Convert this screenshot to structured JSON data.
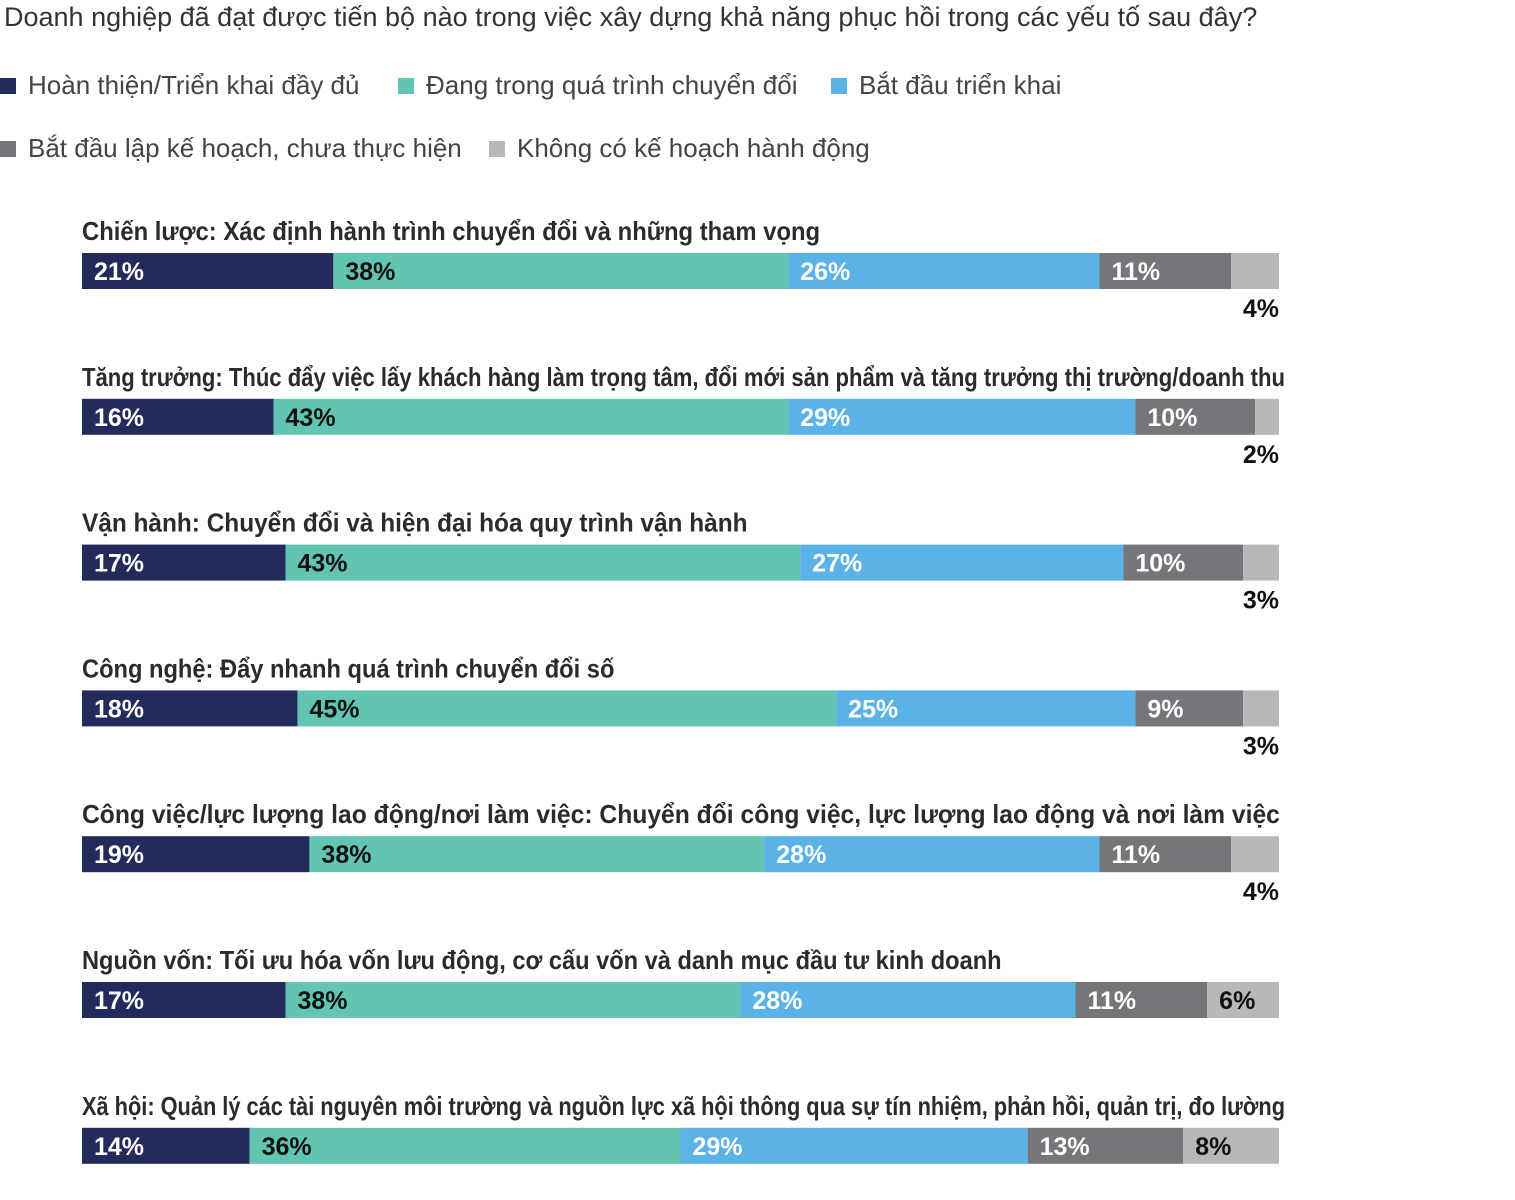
{
  "chart_data": {
    "type": "bar",
    "orientation": "horizontal",
    "stacked": true,
    "title": "Doanh nghiệp đã đạt được tiến bộ nào trong việc xây dựng khả năng phục hồi trong các yếu tố sau đây?",
    "legend_position": "top-left",
    "unit": "%",
    "categories": [
      "Chiến lược: Xác định hành trình chuyển đổi và những tham vọng",
      "Tăng trưởng: Thúc đẩy việc lấy khách hàng làm trọng tâm, đổi mới sản phẩm và tăng trưởng thị trường/doanh thu",
      "Vận hành: Chuyển đổi và hiện đại hóa quy trình vận hành",
      "Công nghệ: Đẩy nhanh quá trình chuyển đổi số",
      "Công việc/lực lượng lao động/nơi làm việc: Chuyển đổi công việc, lực lượng lao động và nơi làm việc",
      "Nguồn vốn: Tối ưu hóa vốn lưu động, cơ cấu vốn và danh mục đầu tư kinh doanh",
      "Xã hội: Quản lý các tài nguyên môi trường và nguồn lực xã hội thông qua sự tín nhiệm, phản hồi, quản trị, đo lường"
    ],
    "series": [
      {
        "name": "Hoàn thiện/Triển khai đầy đủ",
        "color": "#232a5c",
        "values": [
          21,
          16,
          17,
          18,
          19,
          17,
          14
        ]
      },
      {
        "name": "Đang trong quá trình chuyển đổi",
        "color": "#62c5b3",
        "values": [
          38,
          43,
          43,
          45,
          38,
          38,
          36
        ]
      },
      {
        "name": "Bắt đầu triển khai",
        "color": "#5ab2e6",
        "values": [
          26,
          29,
          27,
          25,
          28,
          28,
          29
        ]
      },
      {
        "name": "Bắt đầu lập kế hoạch, chưa thực hiện",
        "color": "#747679",
        "values": [
          11,
          10,
          10,
          9,
          11,
          11,
          13
        ]
      },
      {
        "name": "Không có kế hoạch hành động",
        "color": "#b6b8ba",
        "values": [
          4,
          2,
          3,
          3,
          4,
          6,
          8
        ]
      }
    ],
    "label_colors": {
      "on_dark": "#ffffff",
      "on_light": "#111111"
    }
  }
}
